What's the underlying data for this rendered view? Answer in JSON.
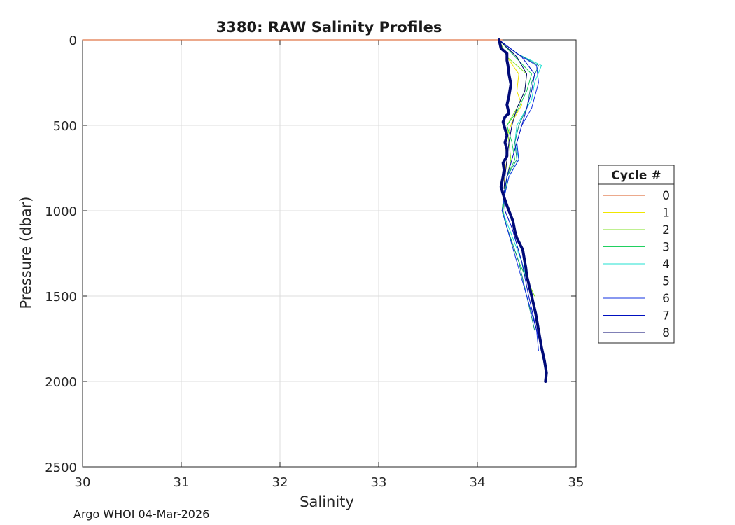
{
  "chart_data": {
    "type": "line",
    "title": "3380: RAW Salinity Profiles",
    "xlabel": "Salinity",
    "ylabel": "Pressure (dbar)",
    "xlim": [
      30,
      35
    ],
    "ylim": [
      0,
      2500
    ],
    "y_reversed": true,
    "x_ticks": [
      30,
      31,
      32,
      33,
      34,
      35
    ],
    "y_ticks": [
      0,
      500,
      1000,
      1500,
      2000,
      2500
    ],
    "grid": true,
    "legend_title": "Cycle #",
    "legend_position": "right-outside",
    "series": [
      {
        "name": "0",
        "color": "#d95319",
        "width": 1,
        "x": [
          30.0,
          34.25
        ],
        "y": [
          0,
          0
        ]
      },
      {
        "name": "1",
        "color": "#f0e600",
        "width": 1,
        "x": [
          34.22,
          34.3,
          34.42,
          34.4,
          34.45,
          34.35,
          34.28,
          34.3,
          34.27,
          34.28,
          34.25
        ],
        "y": [
          0,
          100,
          200,
          300,
          380,
          480,
          600,
          700,
          800,
          900,
          1000
        ]
      },
      {
        "name": "2",
        "color": "#7fe020",
        "width": 1,
        "x": [
          34.22,
          34.3,
          34.5,
          34.48,
          34.4,
          34.3,
          34.32,
          34.34,
          34.3,
          34.27,
          34.25,
          34.3,
          34.42,
          34.5,
          34.58
        ],
        "y": [
          0,
          100,
          200,
          300,
          400,
          500,
          600,
          700,
          800,
          900,
          1000,
          1100,
          1300,
          1400,
          1500
        ]
      },
      {
        "name": "3",
        "color": "#20d060",
        "width": 1,
        "x": [
          34.22,
          34.35,
          34.55,
          34.5,
          34.4,
          34.3,
          34.35,
          34.38,
          34.3,
          34.28,
          34.26,
          34.3,
          34.42,
          34.5,
          34.58
        ],
        "y": [
          0,
          80,
          200,
          300,
          420,
          500,
          600,
          700,
          800,
          900,
          1000,
          1100,
          1300,
          1400,
          1550
        ]
      },
      {
        "name": "4",
        "color": "#20e0d0",
        "width": 1,
        "x": [
          34.22,
          34.4,
          34.65,
          34.58,
          34.55,
          34.4,
          34.38,
          34.42,
          34.32,
          34.28,
          34.25,
          34.32,
          34.45,
          34.55,
          34.62
        ],
        "y": [
          0,
          80,
          150,
          250,
          350,
          500,
          600,
          700,
          800,
          900,
          1000,
          1100,
          1300,
          1500,
          1700
        ]
      },
      {
        "name": "5",
        "color": "#109080",
        "width": 1,
        "x": [
          34.22,
          34.4,
          34.62,
          34.55,
          34.5,
          34.42,
          34.38,
          34.4,
          34.3,
          34.27,
          34.25,
          34.3,
          34.42,
          34.5,
          34.58
        ],
        "y": [
          0,
          80,
          150,
          250,
          400,
          500,
          600,
          700,
          800,
          900,
          1000,
          1100,
          1300,
          1500,
          1700
        ]
      },
      {
        "name": "6",
        "color": "#1030e0",
        "width": 1,
        "x": [
          34.22,
          34.4,
          34.6,
          34.62,
          34.55,
          34.45,
          34.4,
          34.42,
          34.32,
          34.28,
          34.25,
          34.3,
          34.4,
          34.5,
          34.6,
          34.62
        ],
        "y": [
          0,
          80,
          150,
          250,
          400,
          500,
          600,
          700,
          800,
          900,
          1000,
          1100,
          1300,
          1500,
          1700,
          1820
        ]
      },
      {
        "name": "7",
        "color": "#0010c0",
        "width": 1,
        "x": [
          34.22,
          34.45,
          34.58,
          34.55,
          34.5,
          34.45,
          34.4,
          34.35,
          34.3,
          34.27,
          34.28,
          34.35,
          34.45,
          34.52,
          34.6,
          34.65
        ],
        "y": [
          0,
          100,
          200,
          300,
          400,
          500,
          600,
          700,
          800,
          900,
          1000,
          1100,
          1300,
          1500,
          1700,
          1800
        ]
      },
      {
        "name": "8",
        "color": "#00006e",
        "width": 1,
        "x": [
          34.22,
          34.4,
          34.5,
          34.48,
          34.4,
          34.35,
          34.32,
          34.3,
          34.28,
          34.27
        ],
        "y": [
          0,
          100,
          200,
          300,
          400,
          500,
          600,
          700,
          800,
          870
        ]
      },
      {
        "name": "",
        "color": "#000a78",
        "width": 4,
        "x": [
          34.22,
          34.24,
          34.3,
          34.3,
          34.31,
          34.32,
          34.34,
          34.32,
          34.3,
          34.32,
          34.28,
          34.26,
          34.28,
          34.3,
          34.28,
          34.3,
          34.3,
          34.26,
          34.27,
          34.26,
          34.24,
          34.27,
          34.3,
          34.36,
          34.38,
          34.4,
          34.46,
          34.48,
          34.49,
          34.5,
          34.55,
          34.59,
          34.62,
          34.65,
          34.68,
          34.7,
          34.69
        ],
        "y": [
          0,
          50,
          80,
          120,
          150,
          200,
          260,
          330,
          380,
          430,
          450,
          480,
          520,
          560,
          600,
          640,
          680,
          720,
          760,
          800,
          860,
          920,
          970,
          1060,
          1120,
          1160,
          1230,
          1300,
          1330,
          1380,
          1500,
          1600,
          1700,
          1800,
          1880,
          1950,
          2000
        ]
      }
    ]
  },
  "footer": {
    "text": "Argo WHOI 04-Mar-2026"
  }
}
